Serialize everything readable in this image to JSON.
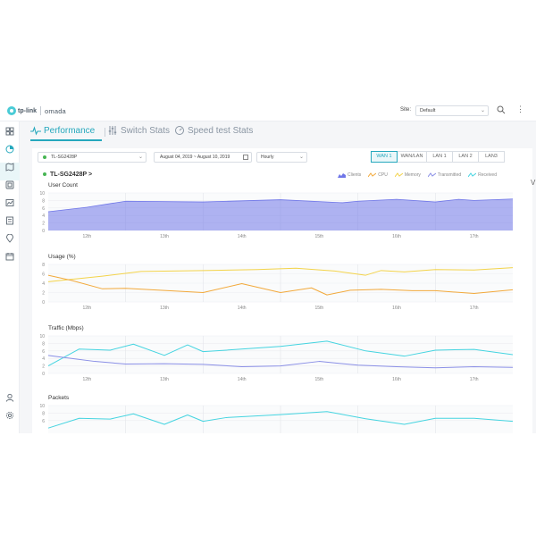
{
  "app": {
    "brand": "tp-link",
    "product": "omada",
    "site_label": "Site:",
    "site_value": "Default",
    "edge_text": "V"
  },
  "tabs": [
    {
      "label": "Performance",
      "icon": "pulse-icon",
      "active": true
    },
    {
      "label": "Switch Stats",
      "icon": "sliders-icon",
      "active": false
    },
    {
      "label": "Speed test Stats",
      "icon": "speedometer-icon",
      "active": false
    }
  ],
  "sidebar": {
    "items": [
      "dashboard-icon",
      "statistics-icon",
      "map-icon",
      "devices-icon",
      "insight-icon",
      "log-icon",
      "location-icon",
      "calendar-icon"
    ],
    "bottom": [
      "account-icon",
      "settings-icon"
    ],
    "active_index": 1
  },
  "filters": {
    "device": "TL-SG2428P",
    "date_range": "August 04, 2019 ~ August 10, 2019",
    "interval": "Hourly",
    "ports": [
      "WAN 1",
      "WAN/LAN",
      "LAN 1",
      "LAN 2",
      "LAN3"
    ],
    "active_port": 0
  },
  "device_title": "TL-SG2428P >",
  "legend": [
    {
      "name": "Clients",
      "color": "#6f76e8"
    },
    {
      "name": "CPU",
      "color": "#f2a93b"
    },
    {
      "name": "Memory",
      "color": "#f3d34a"
    },
    {
      "name": "Transmitted",
      "color": "#8a8fe6"
    },
    {
      "name": "Received",
      "color": "#45d4e0"
    }
  ],
  "chart_data": [
    {
      "type": "area",
      "title": "User Count",
      "xlabel": "",
      "ylabel": "",
      "ylim": [
        0,
        10
      ],
      "yticks": [
        0,
        2,
        4,
        6,
        8,
        10
      ],
      "xticks": [
        "12th",
        "13th",
        "14th",
        "15th",
        "16th",
        "17th"
      ],
      "grid": true,
      "series": [
        {
          "name": "Clients",
          "color": "#6f76e8",
          "x": [
            0,
            0.5,
            1,
            2,
            3,
            3.8,
            4,
            4.5,
            5,
            5.3,
            5.5,
            6
          ],
          "values": [
            5,
            6.2,
            7.8,
            7.6,
            8.2,
            7.4,
            7.8,
            8.3,
            7.6,
            8.3,
            8.0,
            8.4
          ]
        }
      ]
    },
    {
      "type": "line",
      "title": "Usage (%)",
      "xlabel": "",
      "ylabel": "",
      "ylim": [
        0,
        8
      ],
      "yticks": [
        0,
        2,
        4,
        6,
        8
      ],
      "xticks": [
        "12th",
        "13th",
        "14th",
        "15th",
        "16th",
        "17th"
      ],
      "grid": true,
      "series": [
        {
          "name": "Memory",
          "color": "#f3d34a",
          "x": [
            0,
            0.7,
            1.2,
            2,
            2.7,
            3.2,
            3.7,
            4.1,
            4.3,
            4.6,
            5,
            5.5,
            6
          ],
          "values": [
            4.3,
            5.5,
            6.5,
            6.7,
            6.9,
            7.2,
            6.6,
            5.7,
            6.7,
            6.4,
            6.9,
            6.8,
            7.3
          ]
        },
        {
          "name": "CPU",
          "color": "#f2a93b",
          "x": [
            0,
            0.3,
            0.7,
            1,
            2,
            2.5,
            3.0,
            3.4,
            3.6,
            3.9,
            4.3,
            4.7,
            5,
            5.5,
            6
          ],
          "values": [
            5.7,
            4.6,
            2.8,
            2.9,
            2.0,
            3.9,
            2.0,
            3.0,
            1.5,
            2.5,
            2.7,
            2.4,
            2.4,
            1.8,
            2.6
          ]
        }
      ]
    },
    {
      "type": "line",
      "title": "Traffic (Mbps)",
      "xlabel": "",
      "ylabel": "",
      "ylim": [
        0,
        10
      ],
      "yticks": [
        0,
        2,
        4,
        6,
        8,
        10
      ],
      "xticks": [
        "12th",
        "13th",
        "14th",
        "15th",
        "16th",
        "17th"
      ],
      "grid": true,
      "series": [
        {
          "name": "Received",
          "color": "#45d4e0",
          "x": [
            0,
            0.4,
            0.8,
            1.1,
            1.5,
            1.8,
            2.0,
            2.3,
            3.0,
            3.6,
            4.1,
            4.6,
            5,
            5.5,
            6
          ],
          "values": [
            2.0,
            6.5,
            6.2,
            7.8,
            4.8,
            7.6,
            5.8,
            6.2,
            7.2,
            8.6,
            6.0,
            4.6,
            6.2,
            6.4,
            5.0
          ]
        },
        {
          "name": "Transmitted",
          "color": "#8a8fe6",
          "x": [
            0,
            0.3,
            0.6,
            1.0,
            1.5,
            2.0,
            2.5,
            3.0,
            3.5,
            4.0,
            4.5,
            5.0,
            5.5,
            6
          ],
          "values": [
            4.8,
            4.0,
            3.2,
            2.5,
            2.6,
            2.4,
            1.8,
            2.0,
            3.2,
            2.2,
            1.8,
            1.5,
            1.8,
            1.6
          ]
        }
      ]
    },
    {
      "type": "line",
      "title": "Packets",
      "xlabel": "",
      "ylabel": "",
      "ylim": [
        0,
        10
      ],
      "yticks": [
        6,
        8,
        10
      ],
      "xticks": [],
      "grid": true,
      "series": [
        {
          "name": "Received",
          "color": "#45d4e0",
          "x": [
            0,
            0.4,
            0.8,
            1.1,
            1.5,
            1.8,
            2.0,
            2.3,
            3.0,
            3.6,
            4.1,
            4.6,
            5,
            5.5,
            6
          ],
          "values": [
            4.0,
            6.6,
            6.4,
            7.8,
            5.0,
            7.5,
            5.8,
            6.8,
            7.6,
            8.4,
            6.5,
            5.0,
            6.6,
            6.6,
            5.8
          ]
        }
      ]
    }
  ]
}
